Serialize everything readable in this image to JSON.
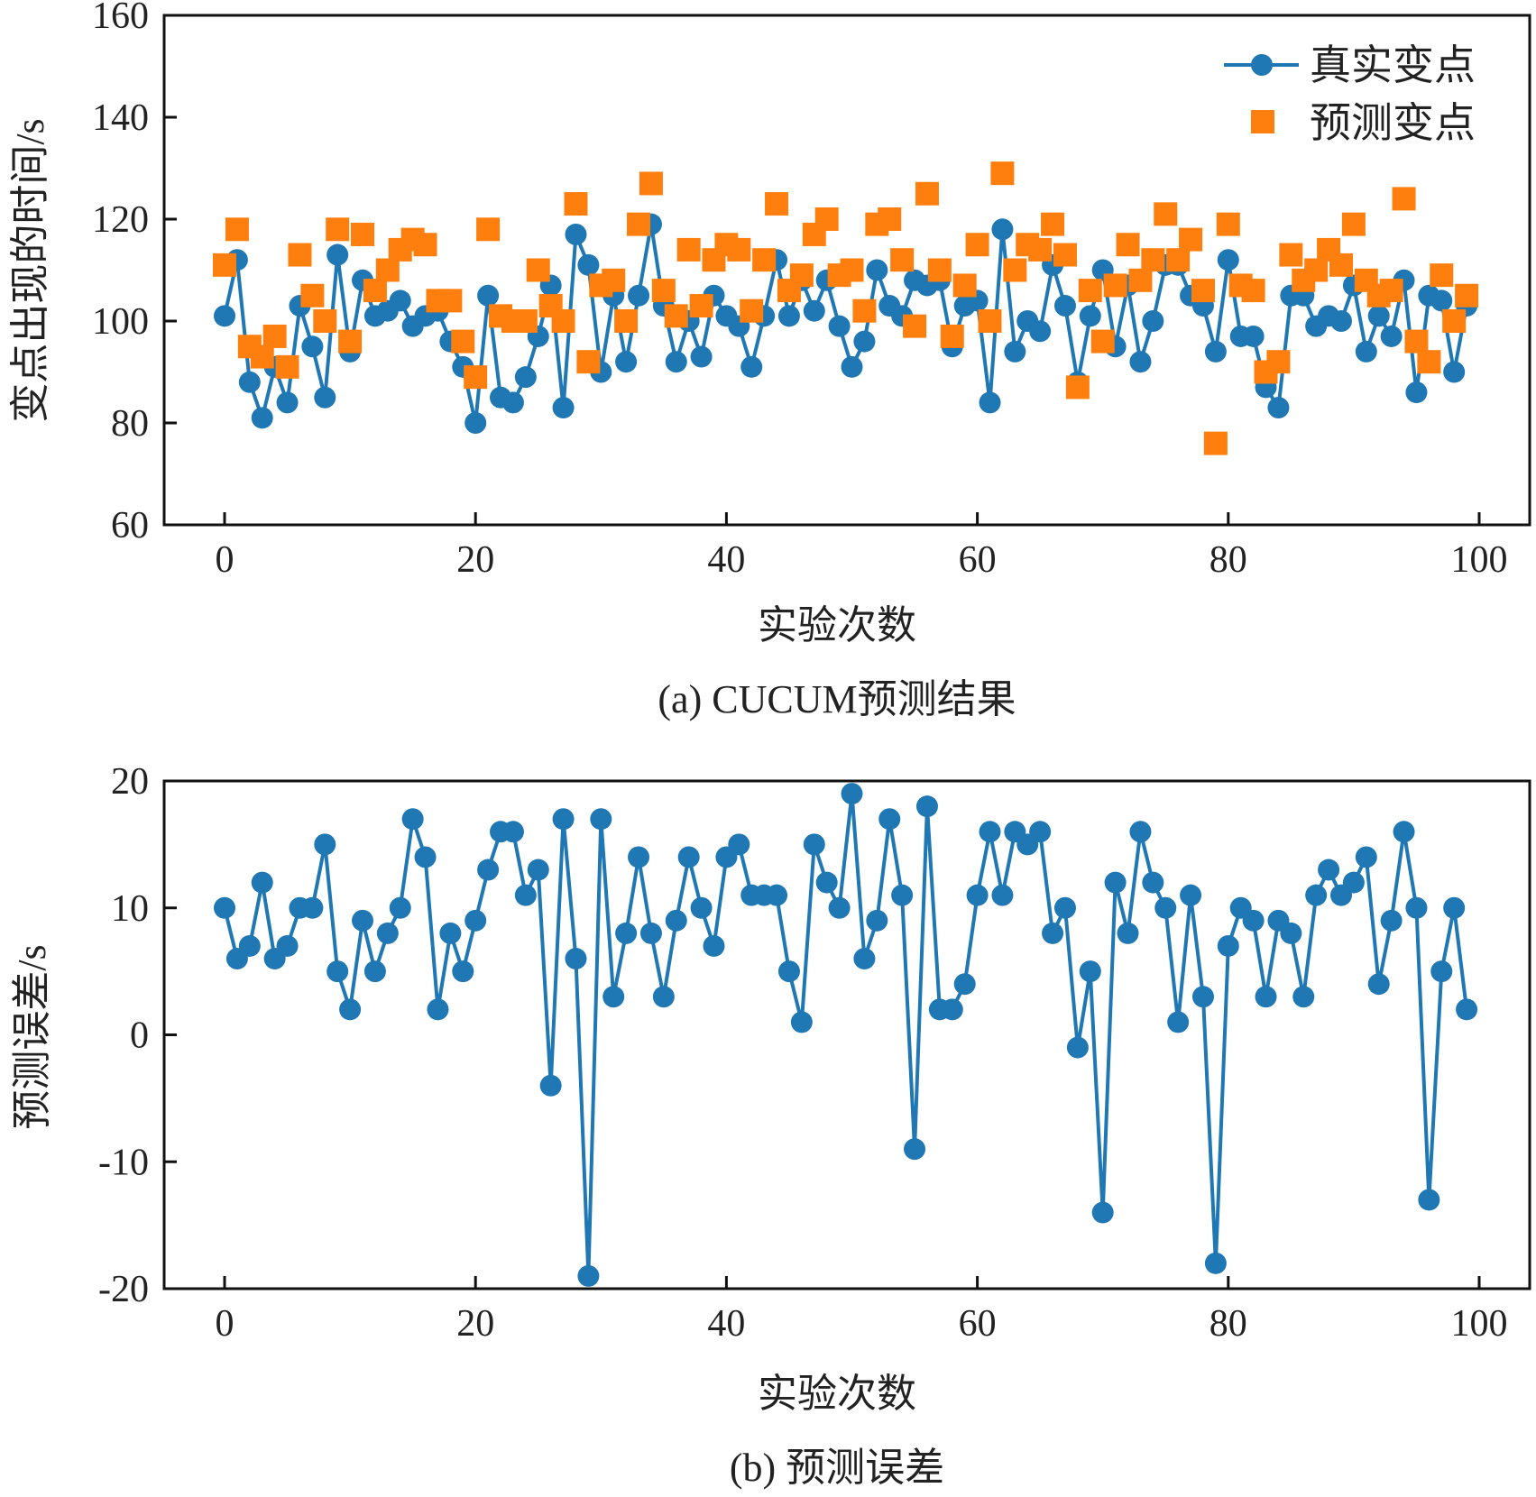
{
  "chart_data": [
    {
      "type": "line",
      "title": "(a) CUCUM预测结果",
      "xlabel": "实验次数",
      "ylabel": "变点出现的时间/s",
      "xlim": [
        -5,
        104
      ],
      "ylim": [
        60,
        160
      ],
      "xticks": [
        "0",
        "20",
        "40",
        "60",
        "80",
        "100"
      ],
      "yticks": [
        "60",
        "80",
        "100",
        "120",
        "140",
        "160"
      ],
      "legend_position": "top-right",
      "colors": {
        "true": "#1f77b4",
        "pred": "#ff7f0e"
      },
      "series": [
        {
          "name": "真实变点",
          "style": "line-circle",
          "values": [
            101,
            112,
            88,
            81,
            91,
            84,
            103,
            95,
            85,
            113,
            94,
            108,
            101,
            102,
            104,
            99,
            101,
            102,
            96,
            91,
            80,
            105,
            85,
            84,
            89,
            97,
            107,
            83,
            117,
            111,
            90,
            105,
            92,
            105,
            119,
            103,
            92,
            100,
            93,
            105,
            101,
            99,
            91,
            101,
            112,
            101,
            108,
            102,
            108,
            99,
            91,
            96,
            110,
            103,
            101,
            108,
            107,
            108,
            95,
            103,
            104,
            84,
            118,
            94,
            100,
            98,
            111,
            103,
            88,
            101,
            110,
            95,
            107,
            92,
            100,
            111,
            111,
            105,
            103,
            94,
            112,
            97,
            97,
            87,
            83,
            105,
            105,
            99,
            101,
            100,
            107,
            94,
            101,
            97,
            108,
            86,
            105,
            104,
            90,
            103
          ]
        },
        {
          "name": "预测变点",
          "style": "square",
          "values": [
            111,
            118,
            95,
            93,
            97,
            91,
            113,
            105,
            100,
            118,
            96,
            117,
            106,
            110,
            114,
            116,
            115,
            104,
            104,
            96,
            89,
            118,
            101,
            100,
            100,
            110,
            103,
            100,
            123,
            92,
            107,
            108,
            100,
            119,
            127,
            106,
            101,
            114,
            103,
            112,
            115,
            114,
            102,
            112,
            123,
            106,
            109,
            117,
            120,
            109,
            110,
            102,
            119,
            120,
            112,
            99,
            125,
            110,
            97,
            107,
            115,
            100,
            129,
            110,
            115,
            114,
            119,
            113,
            87,
            106,
            96,
            107,
            115,
            108,
            112,
            121,
            112,
            116,
            106,
            76,
            119,
            107,
            106,
            90,
            92,
            113,
            108,
            110,
            114,
            111,
            119,
            108,
            105,
            106,
            124,
            96,
            92,
            109,
            100,
            105
          ]
        }
      ]
    },
    {
      "type": "line",
      "title": "(b) 预测误差",
      "xlabel": "实验次数",
      "ylabel": "预测误差/s",
      "xlim": [
        -5,
        104
      ],
      "ylim": [
        -20,
        20
      ],
      "xticks": [
        "0",
        "20",
        "40",
        "60",
        "80",
        "100"
      ],
      "yticks": [
        "-20",
        "-10",
        "0",
        "10",
        "20"
      ],
      "colors": {
        "err": "#1f77b4"
      },
      "series": [
        {
          "name": "预测误差",
          "style": "line-circle",
          "values": [
            10,
            6,
            7,
            12,
            6,
            7,
            10,
            10,
            15,
            5,
            2,
            9,
            5,
            8,
            10,
            17,
            14,
            2,
            8,
            5,
            9,
            13,
            16,
            16,
            11,
            13,
            -4,
            17,
            6,
            -19,
            17,
            3,
            8,
            14,
            8,
            3,
            9,
            14,
            10,
            7,
            14,
            15,
            11,
            11,
            11,
            5,
            1,
            15,
            12,
            10,
            19,
            6,
            9,
            17,
            11,
            -9,
            18,
            2,
            2,
            4,
            11,
            16,
            11,
            16,
            15,
            16,
            8,
            10,
            -1,
            5,
            -14,
            12,
            8,
            16,
            12,
            10,
            1,
            11,
            3,
            -18,
            7,
            10,
            9,
            3,
            9,
            8,
            3,
            11,
            13,
            11,
            12,
            14,
            4,
            9,
            16,
            10,
            -13,
            5,
            10,
            2
          ]
        }
      ]
    }
  ]
}
